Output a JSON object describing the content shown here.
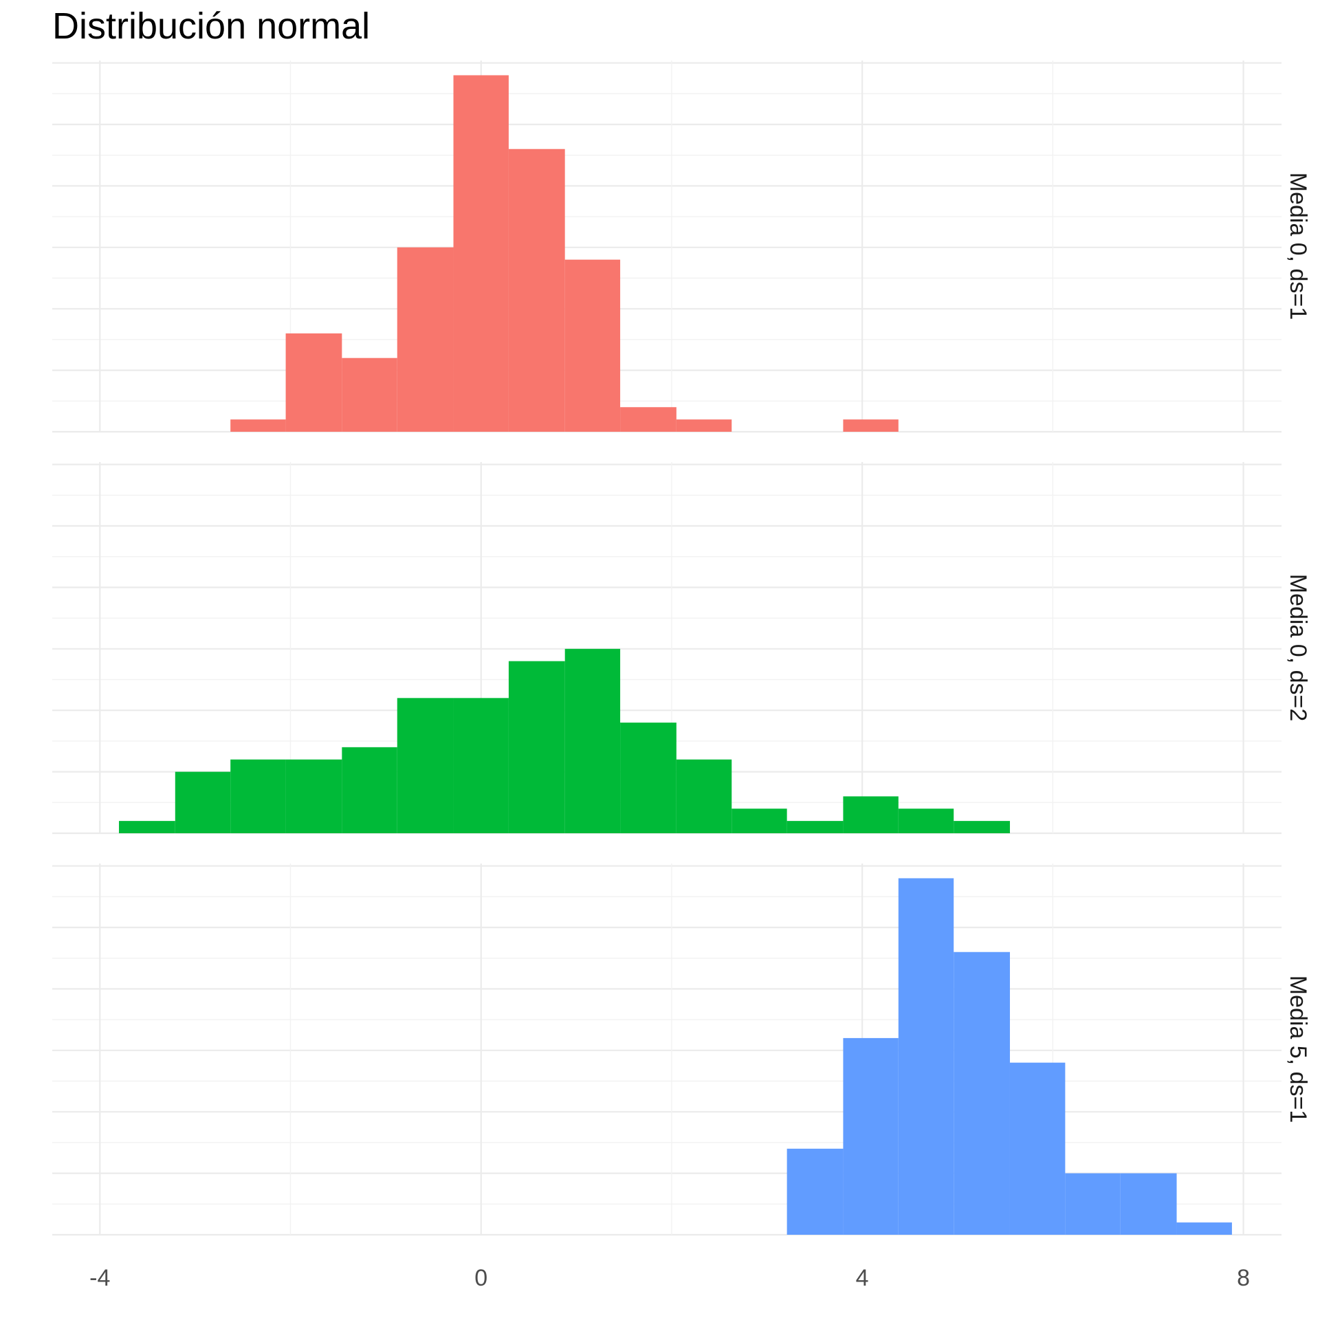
{
  "chart_data": {
    "type": "bar",
    "title": "Distribución normal",
    "xlabel": "",
    "ylabel": "",
    "xlim": [
      -4.5,
      8.4
    ],
    "x_ticks": [
      -4,
      0,
      4,
      8
    ],
    "x_tick_labels": [
      "-4",
      "0",
      "4",
      "8"
    ],
    "grid": true,
    "bin_width": 0.584,
    "panels": [
      {
        "label": "Media 0, ds=1",
        "color": "#F8766D",
        "bins": [
          {
            "x0": -2.63,
            "x1": -2.05,
            "count": 1
          },
          {
            "x0": -2.05,
            "x1": -1.46,
            "count": 8
          },
          {
            "x0": -1.46,
            "x1": -0.88,
            "count": 6
          },
          {
            "x0": -0.88,
            "x1": -0.29,
            "count": 15
          },
          {
            "x0": -0.29,
            "x1": 0.29,
            "count": 29
          },
          {
            "x0": 0.29,
            "x1": 0.88,
            "count": 23
          },
          {
            "x0": 0.88,
            "x1": 1.46,
            "count": 14
          },
          {
            "x0": 1.46,
            "x1": 2.05,
            "count": 2
          },
          {
            "x0": 2.05,
            "x1": 2.63,
            "count": 1
          },
          {
            "x0": 3.8,
            "x1": 4.38,
            "count": 1
          }
        ]
      },
      {
        "label": "Media 0, ds=2",
        "color": "#00BA38",
        "bins": [
          {
            "x0": -3.8,
            "x1": -3.21,
            "count": 1
          },
          {
            "x0": -3.21,
            "x1": -2.63,
            "count": 5
          },
          {
            "x0": -2.63,
            "x1": -2.05,
            "count": 6
          },
          {
            "x0": -2.05,
            "x1": -1.46,
            "count": 6
          },
          {
            "x0": -1.46,
            "x1": -0.88,
            "count": 7
          },
          {
            "x0": -0.88,
            "x1": -0.29,
            "count": 11
          },
          {
            "x0": -0.29,
            "x1": 0.29,
            "count": 11
          },
          {
            "x0": 0.29,
            "x1": 0.88,
            "count": 14
          },
          {
            "x0": 0.88,
            "x1": 1.46,
            "count": 15
          },
          {
            "x0": 1.46,
            "x1": 2.05,
            "count": 9
          },
          {
            "x0": 2.05,
            "x1": 2.63,
            "count": 6
          },
          {
            "x0": 2.63,
            "x1": 3.21,
            "count": 2
          },
          {
            "x0": 3.21,
            "x1": 3.8,
            "count": 1
          },
          {
            "x0": 3.8,
            "x1": 4.38,
            "count": 3
          },
          {
            "x0": 4.38,
            "x1": 4.96,
            "count": 2
          },
          {
            "x0": 4.96,
            "x1": 5.55,
            "count": 1
          }
        ]
      },
      {
        "label": "Media 5, ds=1",
        "color": "#619CFF",
        "bins": [
          {
            "x0": 3.21,
            "x1": 3.8,
            "count": 7
          },
          {
            "x0": 3.8,
            "x1": 4.38,
            "count": 16
          },
          {
            "x0": 4.38,
            "x1": 4.96,
            "count": 29
          },
          {
            "x0": 4.96,
            "x1": 5.55,
            "count": 23
          },
          {
            "x0": 5.55,
            "x1": 6.13,
            "count": 14
          },
          {
            "x0": 6.13,
            "x1": 6.71,
            "count": 5
          },
          {
            "x0": 6.71,
            "x1": 7.3,
            "count": 5
          },
          {
            "x0": 7.3,
            "x1": 7.88,
            "count": 1
          }
        ]
      }
    ],
    "ylim": [
      0,
      30
    ]
  }
}
